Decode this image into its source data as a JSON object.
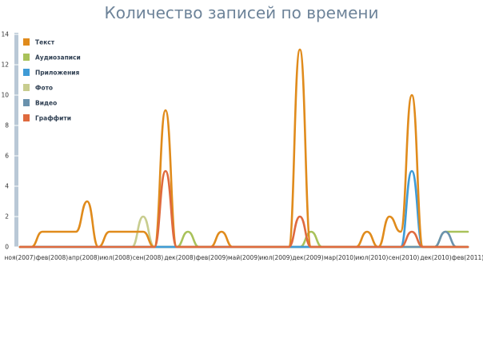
{
  "chart_data": {
    "type": "line",
    "title": "Количество записей по времени",
    "xlabel": "",
    "ylabel": "",
    "ylim": [
      0,
      14
    ],
    "yticks": [
      0,
      2,
      4,
      6,
      8,
      10,
      12,
      14
    ],
    "xticks": [
      "ноя(2007)",
      "фев(2008)",
      "апр(2008)",
      "июл(2008)",
      "сен(2008)",
      "дек(2008)",
      "фев(2009)",
      "май(2009)",
      "июл(2009)",
      "дек(2009)",
      "мар(2010)",
      "июл(2010)",
      "сен(2010)",
      "дек(2010)",
      "фев(2011)"
    ],
    "grid": false,
    "legend_position": "top-left",
    "x": [
      "2007-11",
      "2007-12",
      "2008-01",
      "2008-02",
      "2008-03",
      "2008-04",
      "2008-05",
      "2008-06",
      "2008-07",
      "2008-08",
      "2008-09",
      "2008-10",
      "2008-11",
      "2008-12",
      "2009-01",
      "2009-02",
      "2009-03",
      "2009-04",
      "2009-05",
      "2009-06",
      "2009-07",
      "2009-08",
      "2009-09",
      "2009-10",
      "2009-11",
      "2009-12",
      "2010-01",
      "2010-02",
      "2010-03",
      "2010-04",
      "2010-05",
      "2010-06",
      "2010-07",
      "2010-08",
      "2010-09",
      "2010-10",
      "2010-11",
      "2010-12",
      "2011-01",
      "2011-02",
      "2011-03"
    ],
    "series": [
      {
        "name": "Текст",
        "color": "#e08b1c",
        "values": [
          0,
          0,
          1,
          1,
          1,
          1,
          3,
          0,
          1,
          1,
          1,
          1,
          0,
          9,
          0,
          0,
          0,
          0,
          1,
          0,
          0,
          0,
          0,
          0,
          0,
          13,
          0,
          0,
          0,
          0,
          0,
          1,
          0,
          2,
          1,
          10,
          0,
          0,
          0,
          0,
          0
        ]
      },
      {
        "name": "Аудиозаписи",
        "color": "#a9c25a",
        "values": [
          0,
          0,
          0,
          0,
          0,
          0,
          0,
          0,
          0,
          0,
          0,
          0,
          0,
          0,
          0,
          1,
          0,
          0,
          0,
          0,
          0,
          0,
          0,
          0,
          0,
          0,
          1,
          0,
          0,
          0,
          0,
          0,
          0,
          0,
          0,
          0,
          0,
          0,
          1,
          1,
          1
        ]
      },
      {
        "name": "Приложения",
        "color": "#3f9bd6",
        "values": [
          0,
          0,
          0,
          0,
          0,
          0,
          0,
          0,
          0,
          0,
          0,
          0,
          0,
          0,
          0,
          0,
          0,
          0,
          0,
          0,
          0,
          0,
          0,
          0,
          0,
          0,
          0,
          0,
          0,
          0,
          0,
          0,
          0,
          0,
          0,
          5,
          0,
          0,
          0,
          0,
          0
        ]
      },
      {
        "name": "Фото",
        "color": "#c8cd8f",
        "values": [
          0,
          0,
          0,
          0,
          0,
          0,
          0,
          0,
          0,
          0,
          0,
          2,
          0,
          0,
          0,
          0,
          0,
          0,
          0,
          0,
          0,
          0,
          0,
          0,
          0,
          0,
          0,
          0,
          0,
          0,
          0,
          0,
          0,
          0,
          0,
          0,
          0,
          0,
          0,
          0,
          0
        ]
      },
      {
        "name": "Видео",
        "color": "#6a92ad",
        "values": [
          0,
          0,
          0,
          0,
          0,
          0,
          0,
          0,
          0,
          0,
          0,
          0,
          0,
          0,
          0,
          0,
          0,
          0,
          0,
          0,
          0,
          0,
          0,
          0,
          0,
          0,
          0,
          0,
          0,
          0,
          0,
          0,
          0,
          0,
          0,
          0,
          0,
          0,
          1,
          0,
          0
        ]
      },
      {
        "name": "Граффити",
        "color": "#df6a3e",
        "values": [
          0,
          0,
          0,
          0,
          0,
          0,
          0,
          0,
          0,
          0,
          0,
          0,
          0,
          5,
          0,
          0,
          0,
          0,
          0,
          0,
          0,
          0,
          0,
          0,
          0,
          2,
          0,
          0,
          0,
          0,
          0,
          0,
          0,
          0,
          0,
          1,
          0,
          0,
          0,
          0,
          0
        ]
      }
    ]
  }
}
